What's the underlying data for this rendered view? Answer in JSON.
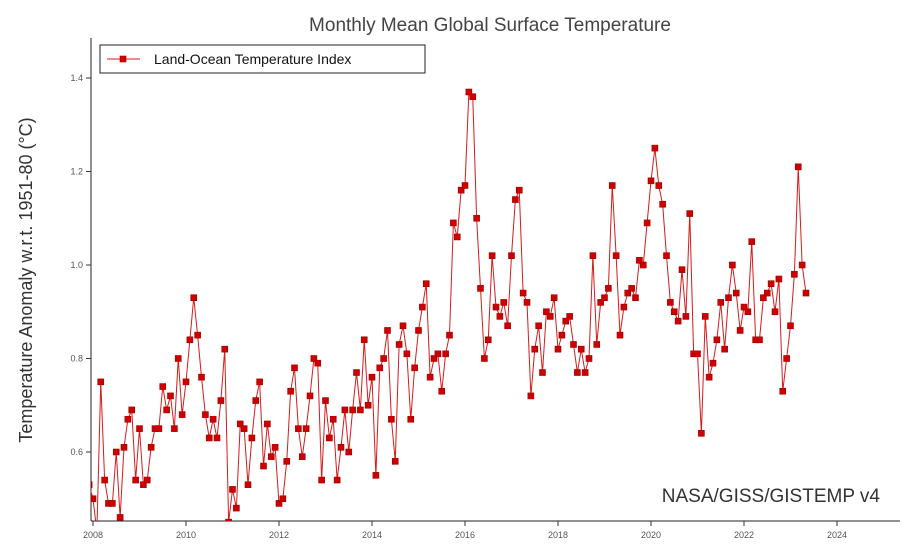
{
  "chart_data": {
    "type": "line",
    "title": "Monthly Mean Global Surface Temperature",
    "xlabel": "",
    "ylabel": "Temperature Anomaly w.r.t. 1951-80 (°C)",
    "credit": "NASA/GISS/GISTEMP v4",
    "xlim": [
      2008,
      2025
    ],
    "ylim": [
      0.465,
      1.49
    ],
    "x_ticks": [
      2008,
      2010,
      2012,
      2014,
      2016,
      2018,
      2020,
      2022,
      2024
    ],
    "x_tick_labels": [
      "2008",
      "2010",
      "2012",
      "2014",
      "2016",
      "2018",
      "2020",
      "2022",
      "2024"
    ],
    "y_ticks": [
      0.6,
      0.8,
      1.0,
      1.2,
      1.4
    ],
    "y_tick_labels": [
      "0.6",
      "0.8",
      "1.0",
      "1.2",
      "1.4"
    ],
    "grid": false,
    "legend": {
      "position": "top-left",
      "entries": [
        "Land-Ocean Temperature Index"
      ]
    },
    "series": [
      {
        "name": "Land-Ocean Temperature Index",
        "color": "#cc0000",
        "start_year": 2007.9167,
        "step_months": 1,
        "values": [
          0.53,
          0.5,
          0.43,
          0.75,
          0.54,
          0.49,
          0.49,
          0.6,
          0.46,
          0.61,
          0.67,
          0.69,
          0.54,
          0.65,
          0.53,
          0.54,
          0.61,
          0.65,
          0.65,
          0.74,
          0.69,
          0.72,
          0.65,
          0.8,
          0.68,
          0.75,
          0.84,
          0.93,
          0.85,
          0.76,
          0.68,
          0.63,
          0.67,
          0.63,
          0.71,
          0.82,
          0.45,
          0.52,
          0.48,
          0.66,
          0.65,
          0.53,
          0.63,
          0.71,
          0.75,
          0.57,
          0.66,
          0.59,
          0.61,
          0.49,
          0.5,
          0.58,
          0.73,
          0.78,
          0.65,
          0.59,
          0.65,
          0.72,
          0.8,
          0.79,
          0.54,
          0.71,
          0.63,
          0.67,
          0.54,
          0.61,
          0.69,
          0.6,
          0.69,
          0.77,
          0.69,
          0.84,
          0.7,
          0.76,
          0.55,
          0.78,
          0.8,
          0.86,
          0.67,
          0.58,
          0.83,
          0.87,
          0.81,
          0.67,
          0.78,
          0.86,
          0.91,
          0.96,
          0.76,
          0.8,
          0.81,
          0.73,
          0.81,
          0.85,
          1.09,
          1.06,
          1.16,
          1.17,
          1.37,
          1.36,
          1.1,
          0.95,
          0.8,
          0.84,
          1.02,
          0.91,
          0.89,
          0.92,
          0.87,
          1.02,
          1.14,
          1.16,
          0.94,
          0.92,
          0.72,
          0.82,
          0.87,
          0.77,
          0.9,
          0.89,
          0.93,
          0.82,
          0.85,
          0.88,
          0.89,
          0.83,
          0.77,
          0.82,
          0.77,
          0.8,
          1.02,
          0.83,
          0.92,
          0.93,
          0.95,
          1.17,
          1.02,
          0.85,
          0.91,
          0.94,
          0.95,
          0.93,
          1.01,
          1.0,
          1.09,
          1.18,
          1.25,
          1.17,
          1.13,
          1.02,
          0.92,
          0.9,
          0.88,
          0.99,
          0.89,
          1.11,
          0.81,
          0.81,
          0.64,
          0.89,
          0.76,
          0.79,
          0.84,
          0.92,
          0.82,
          0.93,
          1.0,
          0.94,
          0.86,
          0.91,
          0.9,
          1.05,
          0.84,
          0.84,
          0.93,
          0.94,
          0.96,
          0.9,
          0.97,
          0.73,
          0.8,
          0.87,
          0.98,
          1.21,
          1.0,
          0.94
        ]
      }
    ]
  }
}
